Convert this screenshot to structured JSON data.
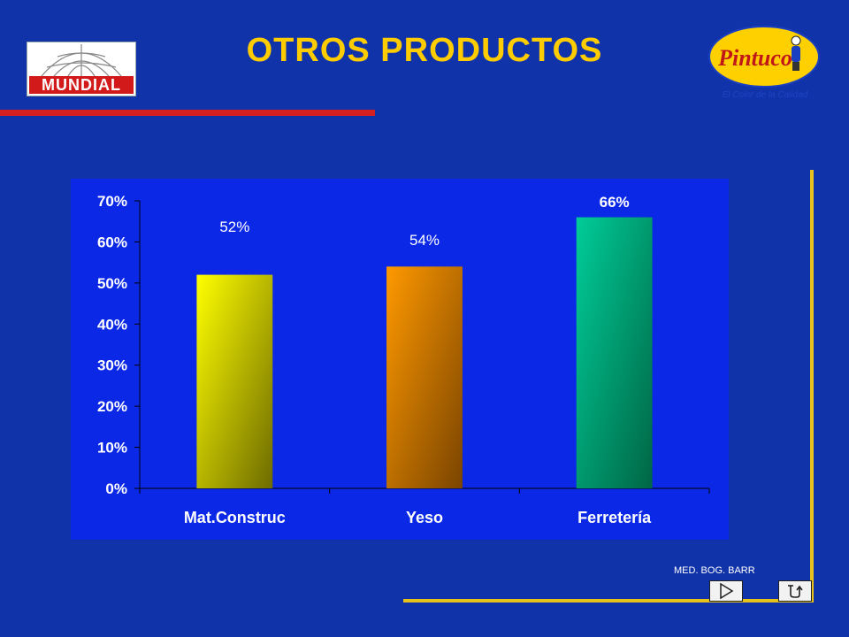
{
  "slide": {
    "title": "OTROS PRODUCTOS",
    "logo_left_text": "MUNDIAL",
    "logo_right_text": "Pintuco",
    "logo_right_tagline": "El Color de la Calidad",
    "footer": "MED. BOG. BARR"
  },
  "icons": {
    "next": "play-right-icon",
    "return": "return-arrow-icon"
  },
  "colors": {
    "background": "#1133aa",
    "panel": "#0b28e6",
    "title": "#ffcc00",
    "accent_red": "#d42020",
    "accent_gold": "#e8c21a"
  },
  "chart_data": {
    "type": "bar",
    "categories": [
      "Mat.Construc",
      "Yeso",
      "Ferretería"
    ],
    "values": [
      52,
      54,
      66
    ],
    "value_labels": [
      "52%",
      "54%",
      "66%"
    ],
    "yticks": [
      "0%",
      "10%",
      "20%",
      "30%",
      "40%",
      "50%",
      "60%",
      "70%"
    ],
    "ylim": [
      0,
      70
    ],
    "grid": false,
    "legend": "none",
    "bar_colors": [
      [
        "#ffff00",
        "#6e6b00"
      ],
      [
        "#ff9900",
        "#7a4400"
      ],
      [
        "#00cc99",
        "#006644"
      ]
    ]
  }
}
